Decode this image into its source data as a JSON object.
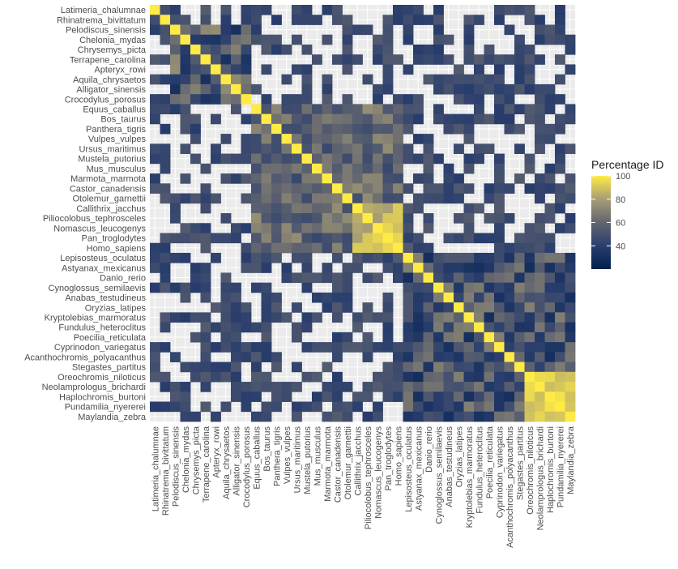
{
  "chart_data": {
    "type": "heatmap",
    "title": "",
    "xlabel": "",
    "ylabel": "",
    "legend": {
      "title": "Percentage ID",
      "ticks": [
        40,
        60,
        80,
        100
      ],
      "range": [
        20,
        100
      ],
      "position": "right"
    },
    "colors": {
      "low": "#00204d",
      "mid": "#7c7b78",
      "high": "#ffea46",
      "na": "#ebebeb",
      "grid": "#ffffff"
    },
    "species": [
      "Latimeria_chalumnae",
      "Rhinatrema_bivittatum",
      "Pelodiscus_sinensis",
      "Chelonia_mydas",
      "Chrysemys_picta",
      "Terrapene_carolina",
      "Apteryx_rowi",
      "Aquila_chrysaetos",
      "Alligator_sinensis",
      "Crocodylus_porosus",
      "Equus_caballus",
      "Bos_taurus",
      "Panthera_tigris",
      "Vulpes_vulpes",
      "Ursus_maritimus",
      "Mustela_putorius",
      "Mus_musculus",
      "Marmota_marmota",
      "Castor_canadensis",
      "Otolemur_garnettii",
      "Callithrix_jacchus",
      "Piliocolobus_tephrosceles",
      "Nomascus_leucogenys",
      "Pan_troglodytes",
      "Homo_sapiens",
      "Lepisosteus_oculatus",
      "Astyanax_mexicanus",
      "Danio_rerio",
      "Cynoglossus_semilaevis",
      "Anabas_testudineus",
      "Oryzias_latipes",
      "Kryptolebias_marmoratus",
      "Fundulus_heteroclitus",
      "Poecilia_reticulata",
      "Cyprinodon_variegatus",
      "Acanthochromis_polyacanthus",
      "Stegastes_partitus",
      "Oreochromis_niloticus",
      "Neolamprologus_brichardi",
      "Haplochromis_burtoni",
      "Pundamilia_nyererei",
      "Maylandia_zebra"
    ]
  }
}
